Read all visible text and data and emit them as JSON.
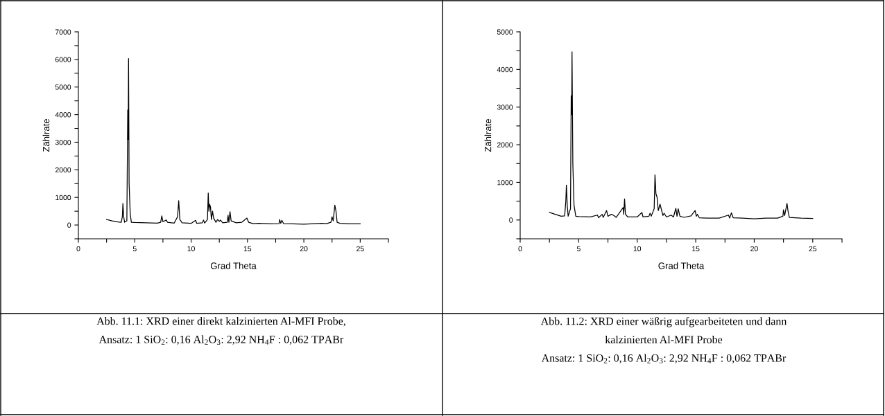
{
  "chart_data": [
    {
      "type": "line",
      "xlabel": "Grad Theta",
      "ylabel": "Zählrate",
      "xlim": [
        0,
        27.5
      ],
      "ylim": [
        -500,
        7000
      ],
      "xticks": [
        0,
        {
          "value": 2.5,
          "label": null
        },
        5,
        {
          "value": 7.5,
          "label": null
        },
        10,
        {
          "value": 12.5,
          "label": null
        },
        15,
        {
          "value": 17.5,
          "label": null
        },
        20,
        {
          "value": 22.5,
          "label": null
        },
        25,
        {
          "value": 27.5,
          "label": null
        }
      ],
      "yticks": [
        {
          "value": -500,
          "label": null
        },
        0,
        {
          "value": 500,
          "label": null
        },
        1000,
        {
          "value": 1500,
          "label": null
        },
        2000,
        {
          "value": 2500,
          "label": null
        },
        3000,
        {
          "value": 3500,
          "label": null
        },
        4000,
        {
          "value": 4500,
          "label": null
        },
        5000,
        {
          "value": 5500,
          "label": null
        },
        6000,
        {
          "value": 6500,
          "label": null
        },
        7000
      ],
      "grid": false,
      "legend": false,
      "marker": "none",
      "line_style": "solid",
      "series": [
        {
          "color": "#000000",
          "x": [
            2.5,
            3,
            3.5,
            3.8,
            3.9,
            3.95,
            4.02,
            4.1,
            4.3,
            4.38,
            4.42,
            4.45,
            4.5,
            4.6,
            4.7,
            5,
            6,
            7,
            7.3,
            7.4,
            7.5,
            7.8,
            7.9,
            8.5,
            8.8,
            8.9,
            9.0,
            9.2,
            10,
            10.4,
            10.5,
            11,
            11.1,
            11.2,
            11.45,
            11.52,
            11.58,
            11.65,
            11.72,
            11.8,
            11.9,
            12,
            12.2,
            12.35,
            12.5,
            12.6,
            12.8,
            13.2,
            13.28,
            13.35,
            13.45,
            13.55,
            14,
            14.5,
            14.95,
            15.1,
            15.5,
            16,
            17,
            17.8,
            17.85,
            17.95,
            18.05,
            18.2,
            19,
            20,
            21,
            21.6,
            22,
            22.4,
            22.5,
            22.6,
            22.75,
            22.85,
            22.95,
            23.2,
            24,
            25
          ],
          "values": [
            200,
            150,
            110,
            100,
            300,
            780,
            300,
            100,
            150,
            4170,
            3100,
            6030,
            1500,
            400,
            100,
            90,
            80,
            70,
            100,
            330,
            120,
            180,
            100,
            70,
            300,
            880,
            200,
            80,
            60,
            170,
            60,
            80,
            180,
            70,
            200,
            1160,
            500,
            750,
            650,
            200,
            500,
            250,
            100,
            200,
            130,
            180,
            80,
            100,
            350,
            100,
            480,
            150,
            80,
            100,
            250,
            100,
            50,
            60,
            40,
            50,
            200,
            60,
            170,
            50,
            40,
            30,
            50,
            60,
            50,
            100,
            300,
            150,
            720,
            500,
            100,
            60,
            40,
            40
          ]
        }
      ],
      "annotations": [
        "Abb. 11.1: XRD einer direkt kalzinierten Al-MFI Probe,\nAnsatz: 1 SiO$_{2}$: 0,16 Al$_{2}$O$_{3}$: 2,92 NH$_{4}$F : 0,062 TPABr"
      ]
    },
    {
      "type": "line",
      "xlabel": "Grad Theta",
      "ylabel": "Zählrate",
      "xlim": [
        0,
        27.5
      ],
      "ylim": [
        -500,
        5000
      ],
      "xticks": [
        0,
        {
          "value": 2.5,
          "label": null
        },
        5,
        {
          "value": 7.5,
          "label": null
        },
        10,
        {
          "value": 12.5,
          "label": null
        },
        15,
        {
          "value": 17.5,
          "label": null
        },
        20,
        {
          "value": 22.5,
          "label": null
        },
        25,
        {
          "value": 27.5,
          "label": null
        }
      ],
      "yticks": [
        {
          "value": -500,
          "label": null
        },
        0,
        {
          "value": 500,
          "label": null
        },
        1000,
        {
          "value": 1500,
          "label": null
        },
        2000,
        {
          "value": 2500,
          "label": null
        },
        3000,
        {
          "value": 3500,
          "label": null
        },
        4000,
        {
          "value": 4500,
          "label": null
        },
        5000
      ],
      "grid": false,
      "legend": false,
      "marker": "none",
      "line_style": "solid",
      "series": [
        {
          "color": "#000000",
          "x": [
            2.5,
            3,
            3.5,
            3.8,
            3.9,
            3.95,
            4.02,
            4.1,
            4.3,
            4.36,
            4.4,
            4.43,
            4.5,
            4.6,
            4.75,
            5,
            6,
            6.6,
            6.7,
            7,
            7.1,
            7.38,
            7.5,
            7.8,
            8,
            8.2,
            8.8,
            8.85,
            8.92,
            9.0,
            9.2,
            10,
            10.4,
            10.5,
            11,
            11.1,
            11.2,
            11.45,
            11.52,
            11.6,
            11.7,
            11.8,
            11.95,
            12.05,
            12.2,
            12.3,
            12.5,
            12.9,
            13.1,
            13.3,
            13.4,
            13.5,
            13.65,
            14,
            14.6,
            14.95,
            15.05,
            15.15,
            15.3,
            16,
            17,
            17.8,
            17.9,
            18.05,
            18.2,
            19,
            20,
            21,
            22,
            22.45,
            22.5,
            22.6,
            22.8,
            22.88,
            23,
            24,
            25
          ],
          "values": [
            200,
            150,
            100,
            110,
            500,
            930,
            400,
            100,
            300,
            3300,
            2800,
            4470,
            1500,
            400,
            100,
            90,
            80,
            130,
            60,
            150,
            70,
            250,
            100,
            150,
            120,
            70,
            330,
            150,
            560,
            150,
            80,
            80,
            200,
            80,
            100,
            180,
            100,
            300,
            1200,
            700,
            600,
            250,
            420,
            300,
            120,
            180,
            80,
            130,
            80,
            310,
            100,
            300,
            100,
            70,
            110,
            250,
            100,
            150,
            60,
            50,
            50,
            130,
            50,
            190,
            60,
            50,
            30,
            50,
            50,
            100,
            270,
            120,
            440,
            250,
            70,
            50,
            40
          ]
        }
      ],
      "annotations": [
        "Abb. 11.2: XRD einer wäßrig aufgearbeiteten und dann\nkalzinierten Al-MFI Probe\nAnsatz: 1 SiO$_{2}$: 0,16 Al$_{2}$O$_{3}$: 2,92 NH$_{4}$F : 0,062 TPABr"
      ]
    }
  ]
}
